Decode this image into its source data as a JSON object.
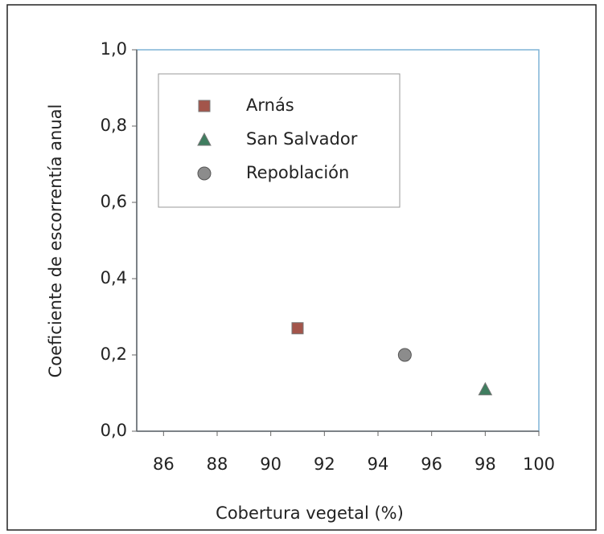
{
  "chart_data": {
    "type": "scatter",
    "x_label": "Cobertura vegetal (%)",
    "y_label": "Coeficiente de escorrentía anual",
    "xlim": [
      85,
      100
    ],
    "xticks": [
      86,
      88,
      90,
      92,
      94,
      96,
      98,
      100
    ],
    "ylim": [
      0,
      1
    ],
    "yticks": [
      {
        "value": 0,
        "label": "0,0"
      },
      {
        "value": 0.2,
        "label": "0,2"
      },
      {
        "value": 0.4,
        "label": "0,4"
      },
      {
        "value": 0.6,
        "label": "0,6"
      },
      {
        "value": 0.8,
        "label": "0,8"
      },
      {
        "value": 1,
        "label": "1,0"
      }
    ],
    "grid": false,
    "legend": "upper-left",
    "series": [
      {
        "name": "Arnás",
        "color": "#a3554b",
        "marker": "square",
        "x": [
          91
        ],
        "values": [
          0.27
        ]
      },
      {
        "name": "San Salvador",
        "color": "#3f7d5f",
        "marker": "triangle",
        "x": [
          98
        ],
        "values": [
          0.11
        ]
      },
      {
        "name": "Repoblación",
        "color": "#8c8c8c",
        "marker": "circle",
        "x": [
          95
        ],
        "values": [
          0.2
        ]
      }
    ]
  }
}
